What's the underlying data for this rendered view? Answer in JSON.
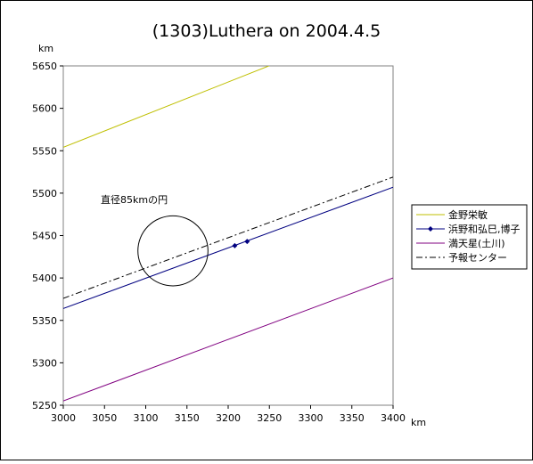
{
  "chart_data": {
    "type": "line",
    "title": "(1303)Luthera on 2004.4.5",
    "xlabel": "km",
    "ylabel": "km",
    "xlim": [
      3000,
      3400
    ],
    "ylim": [
      5250,
      5650
    ],
    "x_ticks": [
      "3000",
      "3050",
      "3100",
      "3150",
      "3200",
      "3250",
      "3300",
      "3350",
      "3400"
    ],
    "y_ticks": [
      "5250",
      "5300",
      "5350",
      "5400",
      "5450",
      "5500",
      "5550",
      "5600",
      "5650"
    ],
    "grid": false,
    "legend_position": "right",
    "series": [
      {
        "name": "金野栄敏",
        "color": "#bfbf00",
        "style": "solid",
        "marker": "none",
        "x": [
          3000,
          3400
        ],
        "y": [
          5554,
          5708
        ]
      },
      {
        "name": "浜野和弘巳,博子",
        "color": "#000080",
        "style": "solid",
        "marker": "diamond",
        "x": [
          3000,
          3400
        ],
        "y": [
          5364,
          5507
        ],
        "points": {
          "x": [
            3208,
            3223
          ],
          "y": [
            5438,
            5443
          ]
        }
      },
      {
        "name": "満天星(土川)",
        "color": "#800080",
        "style": "solid",
        "marker": "none",
        "x": [
          3000,
          3400
        ],
        "y": [
          5255,
          5400
        ]
      },
      {
        "name": "予報センター",
        "color": "#000000",
        "style": "dashdot",
        "marker": "none",
        "x": [
          3000,
          3400
        ],
        "y": [
          5376,
          5519
        ]
      }
    ],
    "circle": {
      "label": "直径85kmの円",
      "cx": 3133,
      "cy": 5432,
      "diameter": 85
    }
  }
}
